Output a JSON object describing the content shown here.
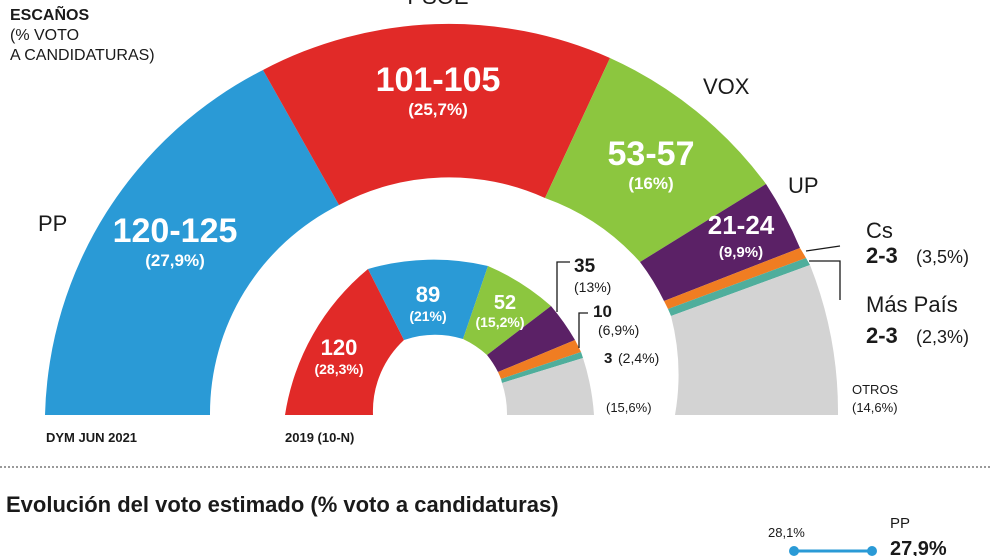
{
  "header": {
    "title": "ESCAÑOS",
    "subtitle_line1": "(% VOTO",
    "subtitle_line2": "A CANDIDATURAS)"
  },
  "colors": {
    "PP": "#2a9ad6",
    "PSOE": "#e12a28",
    "VOX": "#8cc63f",
    "UP": "#5b2166",
    "Cs": "#f07d22",
    "MasPais": "#4fae9c",
    "Otros": "#d3d3d3"
  },
  "chart_data": [
    {
      "type": "parliament",
      "label": "DYM JUN 2021",
      "parties": [
        {
          "name": "PP",
          "seats": "120-125",
          "vote": "(27,9%)",
          "vote_value": 27.9
        },
        {
          "name": "PSOE",
          "seats": "101-105",
          "vote": "(25,7%)",
          "vote_value": 25.7
        },
        {
          "name": "VOX",
          "seats": "53-57",
          "vote": "(16%)",
          "vote_value": 16.0
        },
        {
          "name": "UP",
          "seats": "21-24",
          "vote": "(9,9%)",
          "vote_value": 9.9
        },
        {
          "name": "Cs",
          "seats": "2-3",
          "vote": "(3,5%)",
          "vote_value": 3.5
        },
        {
          "name": "Más País",
          "seats": "2-3",
          "vote": "(2,3%)",
          "vote_value": 2.3
        },
        {
          "name": "OTROS",
          "seats": "",
          "vote": "(14,6%)",
          "vote_value": 14.6
        }
      ]
    },
    {
      "type": "parliament",
      "label": "2019 (10-N)",
      "parties": [
        {
          "name": "PSOE",
          "seats": "120",
          "vote": "(28,3%)",
          "vote_value": 28.3
        },
        {
          "name": "PP",
          "seats": "89",
          "vote": "(21%)",
          "vote_value": 21.0
        },
        {
          "name": "VOX",
          "seats": "52",
          "vote": "(15,2%)",
          "vote_value": 15.2
        },
        {
          "name": "UP",
          "seats": "35",
          "vote": "(13%)",
          "vote_value": 13.0
        },
        {
          "name": "Cs",
          "seats": "10",
          "vote": "(6,9%)",
          "vote_value": 6.9
        },
        {
          "name": "Más País",
          "seats": "3",
          "vote": "(2,4%)",
          "vote_value": 2.4
        },
        {
          "name": "Otros",
          "seats": "",
          "vote": "(15,6%)",
          "vote_value": 15.6
        }
      ]
    },
    {
      "type": "line",
      "title": "Evolución del voto estimado (% voto a candidaturas)",
      "series": [
        {
          "name": "PP",
          "values": [
            28.1,
            27.9
          ],
          "value_labels": [
            "28,1%",
            "27,9%"
          ]
        }
      ]
    }
  ]
}
